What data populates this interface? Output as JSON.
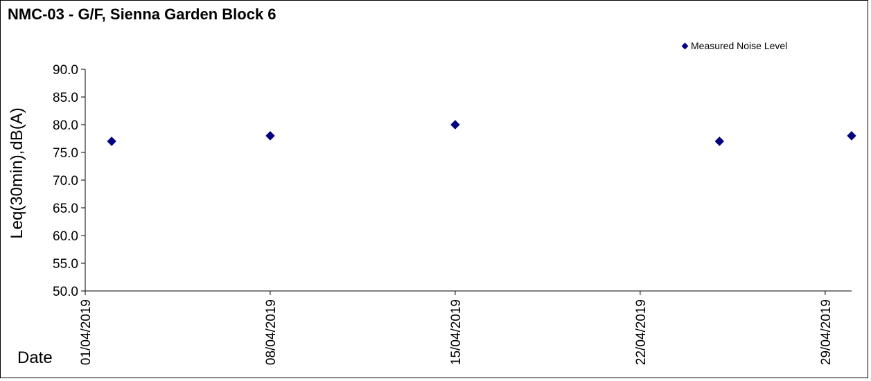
{
  "chart_data": {
    "type": "scatter",
    "title": "NMC-03 - G/F, Sienna Garden Block 6",
    "xlabel": "Date",
    "ylabel": "Leq(30min),dB(A)",
    "ylim": [
      50.0,
      90.0
    ],
    "xlim": [
      "2019-04-01",
      "2019-04-30"
    ],
    "x_ticks": [
      "01/04/2019",
      "08/04/2019",
      "15/04/2019",
      "22/04/2019",
      "29/04/2019"
    ],
    "y_ticks": [
      "50.0",
      "55.0",
      "60.0",
      "65.0",
      "70.0",
      "75.0",
      "80.0",
      "85.0",
      "90.0"
    ],
    "grid": false,
    "legend_position": "top-right",
    "series": [
      {
        "name": "Measured Noise Level",
        "color": "#000080",
        "marker": "diamond",
        "points": [
          {
            "x": "2019-04-02",
            "y": 77.0
          },
          {
            "x": "2019-04-08",
            "y": 78.0
          },
          {
            "x": "2019-04-15",
            "y": 80.0
          },
          {
            "x": "2019-04-25",
            "y": 77.0
          },
          {
            "x": "2019-04-30",
            "y": 78.0
          }
        ]
      }
    ]
  }
}
